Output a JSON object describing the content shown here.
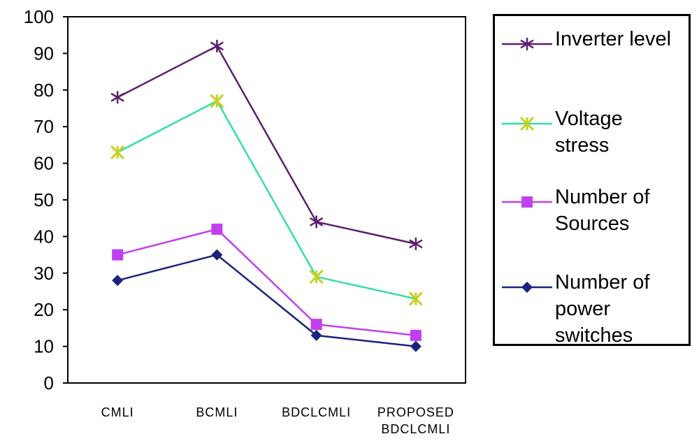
{
  "chart_data": {
    "type": "line",
    "title": "",
    "xlabel": "",
    "ylabel": "",
    "categories": [
      "CMLI",
      "BCMLI",
      "BDCLCMLI",
      "PROPOSED\nBDCLCMLI"
    ],
    "ylim": [
      0,
      100
    ],
    "yticks": [
      "0",
      "10",
      "20",
      "30",
      "40",
      "50",
      "60",
      "70",
      "80",
      "90",
      "100"
    ],
    "grid": false,
    "legend_position": "right",
    "series": [
      {
        "name": "Inverter level",
        "legend_label": "Inverter level",
        "values": [
          78,
          92,
          44,
          38
        ],
        "line_color": "#5b1f6e",
        "marker_color": "#5b1f6e",
        "marker": "asterisk"
      },
      {
        "name": "Voltage stress",
        "legend_label": "Voltage\nstress",
        "values": [
          63,
          77,
          29,
          23
        ],
        "line_color": "#33e0a0",
        "marker_color": "#c8d020",
        "marker": "x-star"
      },
      {
        "name": "Number of Sources",
        "legend_label": "Number of\nSources",
        "values": [
          35,
          42,
          16,
          13
        ],
        "line_color": "#c040f0",
        "marker_color": "#c040f0",
        "marker": "square"
      },
      {
        "name": "Number of power switches",
        "legend_label": "Number of\npower\nswitches",
        "values": [
          28,
          35,
          13,
          10
        ],
        "line_color": "#1a237e",
        "marker_color": "#1a237e",
        "marker": "diamond"
      }
    ]
  }
}
